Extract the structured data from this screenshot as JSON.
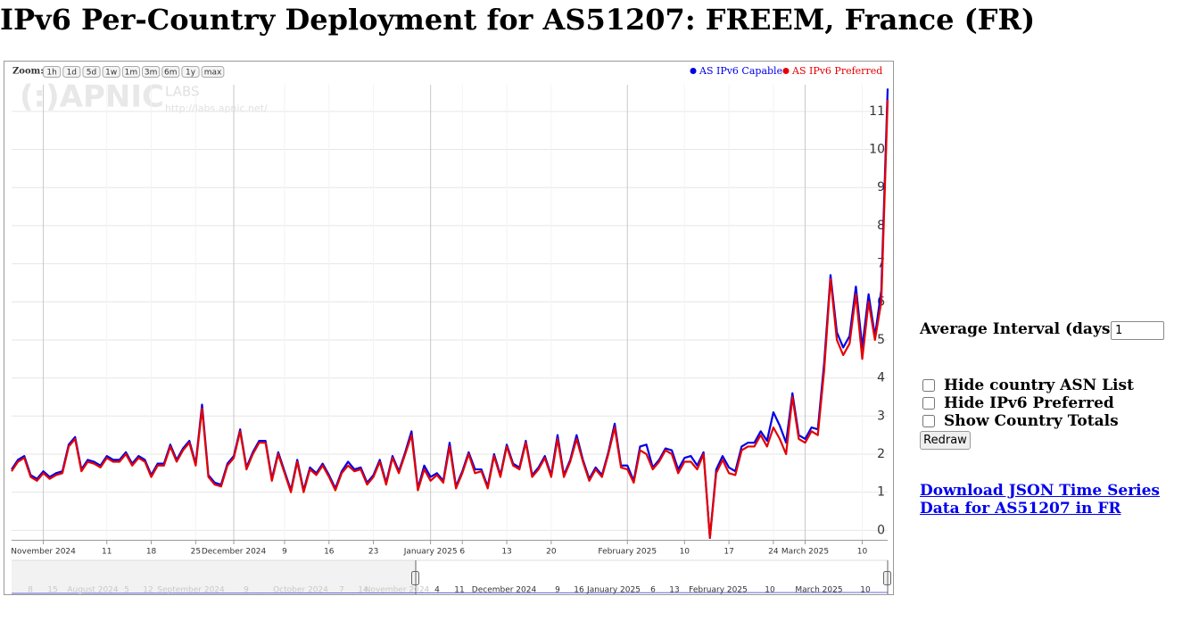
{
  "header": {
    "title": "IPv6 Per-Country Deployment for AS51207: FREEM, France (FR)"
  },
  "chart_data": {
    "type": "line",
    "zoom_label": "Zoom:",
    "zoom_buttons": [
      "1h",
      "1d",
      "5d",
      "1w",
      "1m",
      "3m",
      "6m",
      "1y",
      "max"
    ],
    "watermark": {
      "logo": "(:)APNIC",
      "labs": "LABS",
      "url": "http://labs.apnic.net/"
    },
    "legend": "top-right",
    "grid": true,
    "x": [
      "2024-10-27",
      "2024-10-28",
      "2024-10-29",
      "2024-10-30",
      "2024-10-31",
      "2024-11-01",
      "2024-11-02",
      "2024-11-03",
      "2024-11-04",
      "2024-11-05",
      "2024-11-06",
      "2024-11-07",
      "2024-11-08",
      "2024-11-09",
      "2024-11-10",
      "2024-11-11",
      "2024-11-12",
      "2024-11-13",
      "2024-11-14",
      "2024-11-15",
      "2024-11-16",
      "2024-11-17",
      "2024-11-18",
      "2024-11-19",
      "2024-11-20",
      "2024-11-21",
      "2024-11-22",
      "2024-11-23",
      "2024-11-24",
      "2024-11-25",
      "2024-11-26",
      "2024-11-27",
      "2024-11-28",
      "2024-11-29",
      "2024-11-30",
      "2024-12-01",
      "2024-12-02",
      "2024-12-03",
      "2024-12-04",
      "2024-12-05",
      "2024-12-06",
      "2024-12-07",
      "2024-12-08",
      "2024-12-09",
      "2024-12-10",
      "2024-12-11",
      "2024-12-12",
      "2024-12-13",
      "2024-12-14",
      "2024-12-15",
      "2024-12-16",
      "2024-12-17",
      "2024-12-18",
      "2024-12-19",
      "2024-12-20",
      "2024-12-21",
      "2024-12-22",
      "2024-12-23",
      "2024-12-24",
      "2024-12-25",
      "2024-12-26",
      "2024-12-27",
      "2024-12-28",
      "2024-12-29",
      "2024-12-30",
      "2024-12-31",
      "2025-01-01",
      "2025-01-02",
      "2025-01-03",
      "2025-01-04",
      "2025-01-05",
      "2025-01-06",
      "2025-01-07",
      "2025-01-08",
      "2025-01-09",
      "2025-01-10",
      "2025-01-11",
      "2025-01-12",
      "2025-01-13",
      "2025-01-14",
      "2025-01-15",
      "2025-01-16",
      "2025-01-17",
      "2025-01-18",
      "2025-01-19",
      "2025-01-20",
      "2025-01-21",
      "2025-01-22",
      "2025-01-23",
      "2025-01-24",
      "2025-01-25",
      "2025-01-26",
      "2025-01-27",
      "2025-01-28",
      "2025-01-29",
      "2025-01-30",
      "2025-01-31",
      "2025-02-01",
      "2025-02-02",
      "2025-02-03",
      "2025-02-04",
      "2025-02-05",
      "2025-02-06",
      "2025-02-07",
      "2025-02-08",
      "2025-02-09",
      "2025-02-10",
      "2025-02-11",
      "2025-02-12",
      "2025-02-13",
      "2025-02-14",
      "2025-02-15",
      "2025-02-16",
      "2025-02-17",
      "2025-02-18",
      "2025-02-19",
      "2025-02-20",
      "2025-02-21",
      "2025-02-22",
      "2025-02-23",
      "2025-02-24",
      "2025-02-25",
      "2025-02-26",
      "2025-02-27",
      "2025-02-28",
      "2025-03-01",
      "2025-03-02",
      "2025-03-03",
      "2025-03-04",
      "2025-03-05",
      "2025-03-06",
      "2025-03-07",
      "2025-03-08",
      "2025-03-09",
      "2025-03-10",
      "2025-03-11",
      "2025-03-12",
      "2025-03-13",
      "2025-03-14"
    ],
    "xlim": [
      "2024-10-27",
      "2025-03-14"
    ],
    "xticks": [
      {
        "value": "2024-11-01",
        "label": "November 2024"
      },
      {
        "value": "2024-11-11",
        "label": "11"
      },
      {
        "value": "2024-11-18",
        "label": "18"
      },
      {
        "value": "2024-11-25",
        "label": "25"
      },
      {
        "value": "2024-12-01",
        "label": "December 2024"
      },
      {
        "value": "2024-12-09",
        "label": "9"
      },
      {
        "value": "2024-12-16",
        "label": "16"
      },
      {
        "value": "2024-12-23",
        "label": "23"
      },
      {
        "value": "2025-01-01",
        "label": "January 2025"
      },
      {
        "value": "2025-01-06",
        "label": "6"
      },
      {
        "value": "2025-01-13",
        "label": "13"
      },
      {
        "value": "2025-01-20",
        "label": "20"
      },
      {
        "value": "2025-02-01",
        "label": "February 2025"
      },
      {
        "value": "2025-02-10",
        "label": "10"
      },
      {
        "value": "2025-02-17",
        "label": "17"
      },
      {
        "value": "2025-02-24",
        "label": "24"
      },
      {
        "value": "2025-03-01",
        "label": "March 2025"
      },
      {
        "value": "2025-03-10",
        "label": "10"
      }
    ],
    "ylim": [
      -0.25,
      11.7
    ],
    "yticks": [
      0,
      1,
      2,
      3,
      4,
      5,
      6,
      7,
      8,
      9,
      10,
      11
    ],
    "series": [
      {
        "name": "AS IPv6 Capable",
        "color": "#0000e6",
        "values": [
          1.6,
          1.85,
          1.95,
          1.45,
          1.35,
          1.55,
          1.4,
          1.5,
          1.55,
          2.25,
          2.45,
          1.6,
          1.85,
          1.8,
          1.7,
          1.95,
          1.85,
          1.85,
          2.05,
          1.75,
          1.95,
          1.85,
          1.45,
          1.75,
          1.75,
          2.25,
          1.85,
          2.15,
          2.35,
          1.75,
          3.3,
          1.45,
          1.25,
          1.2,
          1.75,
          1.95,
          2.65,
          1.65,
          2.05,
          2.35,
          2.35,
          1.35,
          2.05,
          1.55,
          1.05,
          1.85,
          1.05,
          1.65,
          1.5,
          1.75,
          1.45,
          1.1,
          1.55,
          1.8,
          1.6,
          1.65,
          1.25,
          1.45,
          1.85,
          1.25,
          1.95,
          1.55,
          2.05,
          2.6,
          1.1,
          1.7,
          1.4,
          1.5,
          1.3,
          2.3,
          1.15,
          1.55,
          2.05,
          1.6,
          1.6,
          1.15,
          2.0,
          1.45,
          2.25,
          1.75,
          1.65,
          2.35,
          1.45,
          1.65,
          1.95,
          1.45,
          2.5,
          1.45,
          1.85,
          2.5,
          1.85,
          1.35,
          1.65,
          1.45,
          2.05,
          2.8,
          1.7,
          1.7,
          1.3,
          2.2,
          2.25,
          1.65,
          1.85,
          2.15,
          2.1,
          1.6,
          1.9,
          1.95,
          1.7,
          2.05,
          -0.2,
          1.6,
          1.95,
          1.65,
          1.55,
          2.2,
          2.3,
          2.3,
          2.6,
          2.35,
          3.1,
          2.75,
          2.3,
          3.6,
          2.5,
          2.4,
          2.7,
          2.65,
          4.4,
          6.7,
          5.2,
          4.8,
          5.1,
          6.4,
          4.8,
          6.2,
          5.1,
          6.3,
          11.6
        ]
      },
      {
        "name": "AS IPv6 Preferred",
        "color": "#e60000",
        "values": [
          1.55,
          1.8,
          1.9,
          1.4,
          1.3,
          1.5,
          1.35,
          1.45,
          1.5,
          2.2,
          2.4,
          1.55,
          1.8,
          1.75,
          1.65,
          1.9,
          1.8,
          1.8,
          2.0,
          1.7,
          1.9,
          1.8,
          1.4,
          1.7,
          1.7,
          2.2,
          1.8,
          2.1,
          2.3,
          1.7,
          3.2,
          1.4,
          1.2,
          1.15,
          1.7,
          1.9,
          2.6,
          1.6,
          2.0,
          2.3,
          2.3,
          1.3,
          2.0,
          1.5,
          1.0,
          1.8,
          1.0,
          1.6,
          1.45,
          1.7,
          1.4,
          1.05,
          1.5,
          1.7,
          1.55,
          1.6,
          1.2,
          1.4,
          1.8,
          1.2,
          1.9,
          1.5,
          2.0,
          2.5,
          1.05,
          1.6,
          1.3,
          1.45,
          1.25,
          2.2,
          1.1,
          1.5,
          2.0,
          1.5,
          1.55,
          1.1,
          1.95,
          1.4,
          2.2,
          1.7,
          1.6,
          2.3,
          1.4,
          1.6,
          1.9,
          1.4,
          2.4,
          1.4,
          1.8,
          2.4,
          1.8,
          1.3,
          1.6,
          1.4,
          2.0,
          2.7,
          1.65,
          1.6,
          1.25,
          2.1,
          2.0,
          1.6,
          1.8,
          2.1,
          2.0,
          1.5,
          1.8,
          1.8,
          1.6,
          2.0,
          -0.2,
          1.5,
          1.85,
          1.5,
          1.45,
          2.1,
          2.2,
          2.2,
          2.5,
          2.2,
          2.7,
          2.4,
          2.0,
          3.5,
          2.4,
          2.3,
          2.6,
          2.5,
          4.2,
          6.6,
          5.0,
          4.6,
          4.9,
          6.2,
          4.5,
          6.0,
          5.0,
          6.0,
          11.3
        ]
      }
    ],
    "navigator_labels": [
      "8",
      "15",
      "August 2024",
      "5",
      "12",
      "September 2024",
      "9",
      "October 2024",
      "7",
      "14",
      "November 2024",
      "4",
      "11",
      "December 2024",
      "9",
      "16",
      "January 2025",
      "6",
      "13",
      "February 2025",
      "10",
      "March 2025",
      "10"
    ]
  },
  "controls": {
    "interval_label": "Average Interval (days)",
    "interval_value": 1,
    "checkboxes": [
      "Hide country ASN List",
      "Hide IPv6 Preferred",
      "Show Country Totals"
    ],
    "button": "Redraw",
    "link": "Download JSON Time Series Data for AS51207 in FR"
  }
}
